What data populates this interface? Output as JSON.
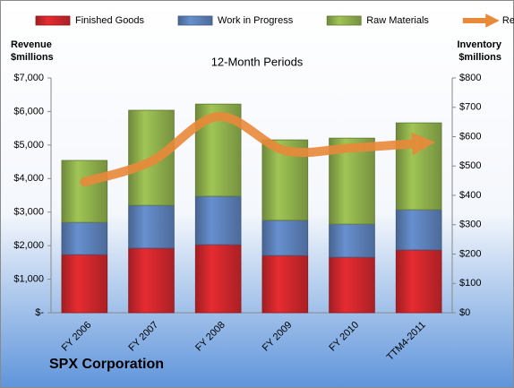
{
  "chart_data": {
    "type": "bar",
    "stacked": true,
    "title": "12-Month Periods",
    "y_label": "Revenue $millions",
    "y2_label": "Inventory $millions",
    "footer": "SPX Corporation",
    "categories": [
      "FY 2006",
      "FY 2007",
      "FY 2008",
      "FY 2009",
      "FY 2010",
      "TTM4-2011"
    ],
    "series": [
      {
        "name": "Finished Goods",
        "color": "#c8262b",
        "axis": "y2",
        "values": [
          198,
          220,
          232,
          195,
          189,
          214
        ]
      },
      {
        "name": "Work in Progress",
        "color": "#5a7db4",
        "axis": "y2",
        "values": [
          110,
          146,
          165,
          120,
          113,
          137
        ]
      },
      {
        "name": "Raw Materials",
        "color": "#8bab4a",
        "axis": "y2",
        "values": [
          211,
          324,
          314,
          274,
          293,
          296
        ]
      },
      {
        "name": "Revenue",
        "color": "#e9893a",
        "type": "line",
        "axis": "y",
        "values": [
          3900,
          4515,
          5850,
          4836,
          4916,
          5050
        ]
      }
    ],
    "ylim": [
      0,
      7000
    ],
    "yticks": [
      {
        "value": 0,
        "label": "$-"
      },
      {
        "value": 1000,
        "label": "$1,000"
      },
      {
        "value": 2000,
        "label": "$2,000"
      },
      {
        "value": 3000,
        "label": "$3,000"
      },
      {
        "value": 4000,
        "label": "$4,000"
      },
      {
        "value": 5000,
        "label": "$5,000"
      },
      {
        "value": 6000,
        "label": "$6,000"
      },
      {
        "value": 7000,
        "label": "$7,000"
      }
    ],
    "y2lim": [
      0,
      800
    ],
    "y2ticks": [
      {
        "value": 0,
        "label": "$0"
      },
      {
        "value": 100,
        "label": "$100"
      },
      {
        "value": 200,
        "label": "$200"
      },
      {
        "value": 300,
        "label": "$300"
      },
      {
        "value": 400,
        "label": "$400"
      },
      {
        "value": 500,
        "label": "$500"
      },
      {
        "value": 600,
        "label": "$600"
      },
      {
        "value": 700,
        "label": "$700"
      },
      {
        "value": 800,
        "label": "$800"
      }
    ],
    "grid": false,
    "legend": "top"
  }
}
